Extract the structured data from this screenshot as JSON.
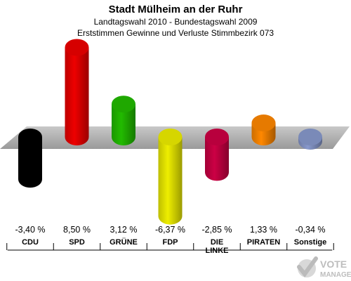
{
  "chart_data": {
    "type": "bar",
    "title": "Stadt Mülheim an der Ruhr",
    "subtitle_1": "Landtagswahl 2010 - Bundestagswahl 2009",
    "subtitle_2": "Erststimmen Gewinne und Verluste Stimmbezirk 073",
    "categories": [
      "CDU",
      "SPD",
      "GRÜNE",
      "FDP",
      "DIE LINKE",
      "PIRATEN",
      "Sonstige"
    ],
    "category_lines": [
      [
        "CDU"
      ],
      [
        "SPD"
      ],
      [
        "GRÜNE"
      ],
      [
        "FDP"
      ],
      [
        "DIE",
        "LINKE"
      ],
      [
        "PIRATEN"
      ],
      [
        "Sonstige"
      ]
    ],
    "values": [
      -3.4,
      8.5,
      3.12,
      -6.37,
      -2.85,
      1.33,
      -0.34
    ],
    "value_labels": [
      "-3,40 %",
      "8,50 %",
      "3,12 %",
      "-6,37 %",
      "-2,85 %",
      "1,33 %",
      "-0,34 %"
    ],
    "colors": [
      "#000000",
      "#ee0000",
      "#22bb00",
      "#eeee00",
      "#cc0044",
      "#ff8800",
      "#8899cc"
    ],
    "ylim": [
      -6.5,
      8.6
    ]
  },
  "watermark": {
    "line1": "VOTE",
    "line2": "MANAGER"
  }
}
